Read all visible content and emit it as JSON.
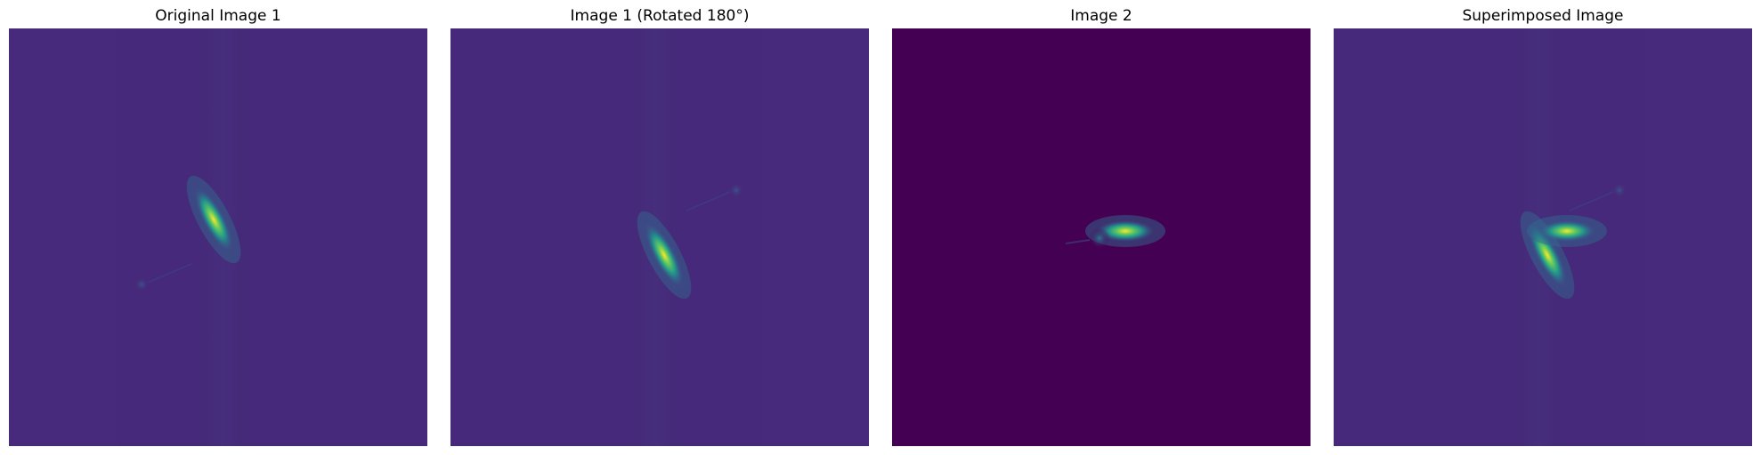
{
  "panels": [
    {
      "title": "Original Image 1",
      "variant": "original"
    },
    {
      "title": "Image 1 (Rotated 180°)",
      "variant": "rotated"
    },
    {
      "title": "Image 2",
      "variant": "image2"
    },
    {
      "title": "Superimposed Image",
      "variant": "superimposed"
    }
  ],
  "colors": {
    "viridis_dark": "#440154",
    "viridis_mid": "#21918c",
    "viridis_bright": "#fde725"
  }
}
